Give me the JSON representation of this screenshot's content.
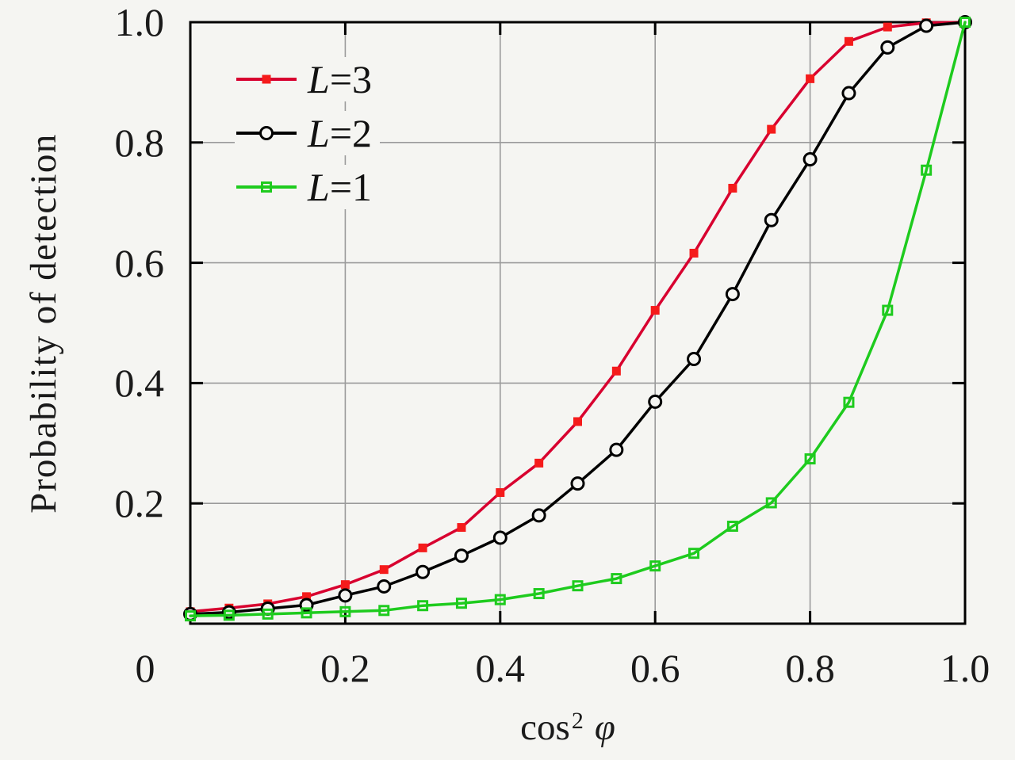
{
  "figure": {
    "background": "#f5f5f2",
    "axis_color": "#000000",
    "grid_color": "#9b9b9b"
  },
  "ylabel": "Probability of detection",
  "xlabel": {
    "fn": "cos",
    "sup": "2",
    "arg": "φ"
  },
  "origin_label": "0",
  "legend": {
    "position": "top-left",
    "items": [
      {
        "label": "L=3",
        "var": "L",
        "rest": "=3",
        "series": "L=3"
      },
      {
        "label": "L=2",
        "var": "L",
        "rest": "=2",
        "series": "L=2"
      },
      {
        "label": "L=1",
        "var": "L",
        "rest": "=1",
        "series": "L=1"
      }
    ]
  },
  "chart_data": {
    "type": "line",
    "title": "",
    "xlabel": "cos^2 phi",
    "ylabel": "Probability of detection",
    "xlim": [
      0,
      1
    ],
    "ylim": [
      0,
      1
    ],
    "grid": true,
    "legend_position": "top-left",
    "x_ticks": [
      0.2,
      0.4,
      0.6,
      0.8,
      1.0
    ],
    "x_tick_labels": [
      "0.2",
      "0.4",
      "0.6",
      "0.8",
      "1.0"
    ],
    "y_ticks": [
      0.2,
      0.4,
      0.6,
      0.8,
      1.0
    ],
    "y_tick_labels": [
      "0.2",
      "0.4",
      "0.6",
      "0.8",
      "1.0"
    ],
    "x": [
      0.0,
      0.05,
      0.1,
      0.15,
      0.2,
      0.25,
      0.3,
      0.35,
      0.4,
      0.45,
      0.5,
      0.55,
      0.6,
      0.65,
      0.7,
      0.75,
      0.8,
      0.85,
      0.9,
      0.95,
      1.0
    ],
    "series": [
      {
        "name": "L=3",
        "color": "#d8002f",
        "marker": "filled-square",
        "marker_color": "#f51b1b",
        "values": [
          0.02,
          0.026,
          0.033,
          0.045,
          0.065,
          0.09,
          0.126,
          0.16,
          0.218,
          0.267,
          0.336,
          0.42,
          0.521,
          0.616,
          0.724,
          0.822,
          0.906,
          0.968,
          0.992,
          0.999,
          1.0
        ]
      },
      {
        "name": "L=2",
        "color": "#000000",
        "marker": "open-circle",
        "marker_color": "#000000",
        "values": [
          0.016,
          0.019,
          0.025,
          0.031,
          0.047,
          0.062,
          0.086,
          0.113,
          0.143,
          0.18,
          0.233,
          0.289,
          0.369,
          0.44,
          0.548,
          0.671,
          0.772,
          0.882,
          0.958,
          0.994,
          1.0
        ]
      },
      {
        "name": "L=1",
        "color": "#1ecb1e",
        "marker": "open-square",
        "marker_color": "#1ecb1e",
        "values": [
          0.013,
          0.014,
          0.016,
          0.018,
          0.02,
          0.022,
          0.03,
          0.034,
          0.04,
          0.05,
          0.063,
          0.075,
          0.096,
          0.117,
          0.162,
          0.201,
          0.274,
          0.368,
          0.521,
          0.754,
          1.0
        ]
      }
    ]
  }
}
